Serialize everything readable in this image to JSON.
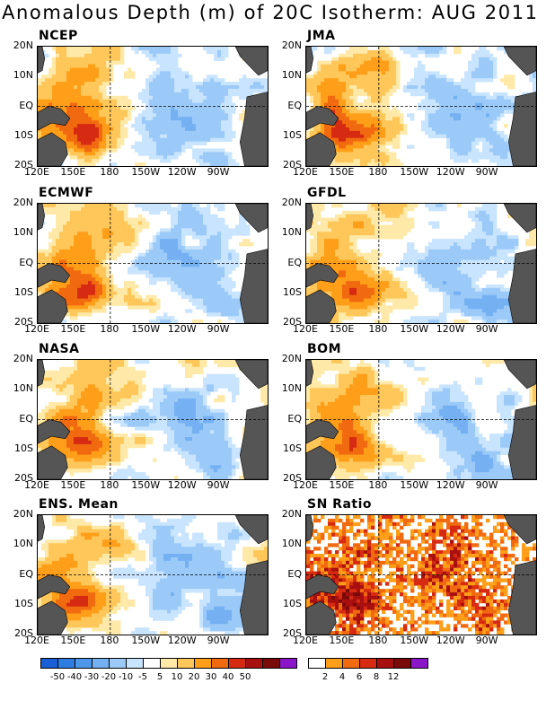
{
  "title": "Anomalous Depth (m) of 20C Isotherm: AUG 2011",
  "lat_labels": [
    "20N",
    "10N",
    "EQ",
    "10S",
    "20S"
  ],
  "lon_labels": [
    "120E",
    "150E",
    "180",
    "150W",
    "120W",
    "90W"
  ],
  "panels": [
    {
      "name": "NCEP",
      "kind": "anomaly"
    },
    {
      "name": "JMA",
      "kind": "anomaly"
    },
    {
      "name": "ECMWF",
      "kind": "anomaly"
    },
    {
      "name": "GFDL",
      "kind": "anomaly"
    },
    {
      "name": "NASA",
      "kind": "anomaly"
    },
    {
      "name": "BOM",
      "kind": "anomaly"
    },
    {
      "name": "ENS. Mean",
      "kind": "anomaly"
    },
    {
      "name": "SN Ratio",
      "kind": "snr"
    }
  ],
  "colors": {
    "land": "#555555",
    "anomaly_scale": [
      "#1a5fd6",
      "#2f7de1",
      "#4f97ea",
      "#74b0f2",
      "#9ccaf8",
      "#c9e4ff",
      "#ffffff",
      "#ffe9a8",
      "#ffc75a",
      "#ff9f19",
      "#f26a10",
      "#d62b12",
      "#a81010",
      "#7a0a0a",
      "#8a15c9"
    ],
    "snr_scale": [
      "#ffffff",
      "#ff9f19",
      "#f26a10",
      "#d62b12",
      "#a81010",
      "#7a0a0a",
      "#8a15c9"
    ]
  },
  "legend_anomaly": {
    "labels": [
      "-50",
      "-40",
      "-30",
      "-20",
      "-10",
      "-5",
      "5",
      "10",
      "20",
      "30",
      "40",
      "50"
    ]
  },
  "legend_snr": {
    "labels": [
      "2",
      "4",
      "6",
      "8",
      "12"
    ]
  }
}
